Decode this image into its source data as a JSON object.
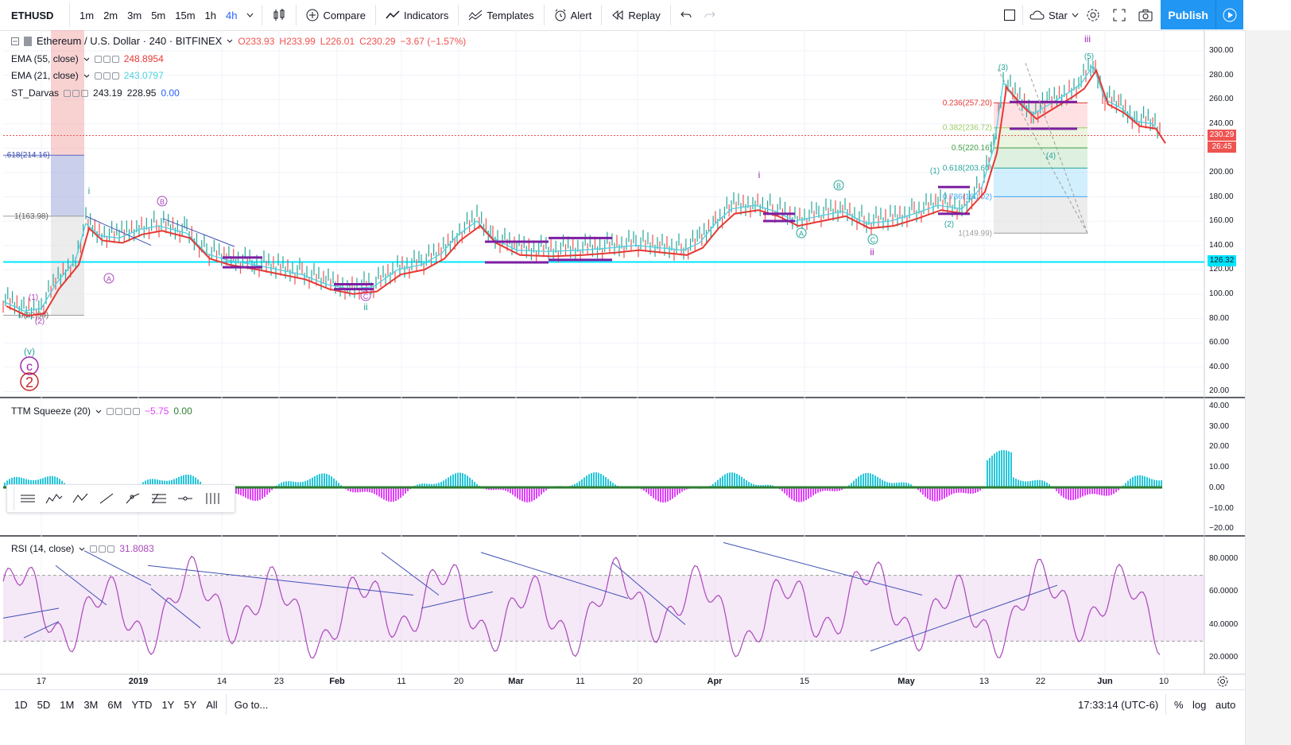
{
  "symbol": "ETHUSD",
  "timeframes": [
    {
      "label": "1m",
      "active": false
    },
    {
      "label": "2m",
      "active": false
    },
    {
      "label": "3m",
      "active": false
    },
    {
      "label": "5m",
      "active": false
    },
    {
      "label": "15m",
      "active": false
    },
    {
      "label": "1h",
      "active": false
    },
    {
      "label": "4h",
      "active": true
    }
  ],
  "toolbar": {
    "compare": "Compare",
    "indicators": "Indicators",
    "templates": "Templates",
    "alert": "Alert",
    "replay": "Replay",
    "star": "Star",
    "publish": "Publish"
  },
  "legend": {
    "title": "Ethereum / U.S. Dollar · 240 · BITFINEX",
    "open": "O233.93",
    "high": "H233.99",
    "low": "L226.01",
    "close": "C230.29",
    "change": "−3.67 (−1.57%)",
    "ema55_label": "EMA (55, close)",
    "ema55_value": "248.8954",
    "ema21_label": "EMA (21, close)",
    "ema21_value": "243.0797",
    "darvas_label": "ST_Darvas",
    "darvas_v1": "243.19",
    "darvas_v2": "228.95",
    "darvas_v3": "0.00",
    "ttm_label": "TTM Squeeze (20)",
    "ttm_v1": "−5.75",
    "ttm_v2": "0.00",
    "rsi_label": "RSI (14, close)",
    "rsi_value": "31.8083"
  },
  "price_axis": [
    "300.00",
    "280.00",
    "260.00",
    "240.00",
    "220.00",
    "200.00",
    "180.00",
    "160.00",
    "140.00",
    "120.00",
    "100.00",
    "80.00",
    "60.00",
    "40.00",
    "20.00"
  ],
  "price_tags": {
    "last": "230.29",
    "countdown": "26:45",
    "hline": "126.32"
  },
  "ttm_axis": [
    "40.00",
    "30.00",
    "20.00",
    "10.00",
    "0.00",
    "−10.00",
    "−20.00"
  ],
  "rsi_axis": [
    "80.0000",
    "60.0000",
    "40.0000",
    "20.0000"
  ],
  "time_axis": [
    "17",
    "2019",
    "14",
    "23",
    "Feb",
    "11",
    "20",
    "Mar",
    "11",
    "20",
    "Apr",
    "15",
    "May",
    "13",
    "22",
    "Jun",
    "10"
  ],
  "fib_left": [
    ".618(214.16)",
    "1(163.98)",
    "0(82.50)"
  ],
  "fib_right": [
    "0.236(257.20)",
    "0.382(236.72)",
    "0.5(220.16)",
    "0.618(203.60)",
    "0.786(180.02)",
    "1(149.99)"
  ],
  "waves": {
    "iii": "iii",
    "i": "i",
    "ii": "ii",
    "A": "A",
    "B": "B",
    "C": "C",
    "two": "2",
    "c": "c",
    "v": "(v)",
    "n1": "(1)",
    "n2": "(2)",
    "n3": "(3)",
    "n4": "(4)",
    "n5": "(5)"
  },
  "ranges": [
    "1D",
    "5D",
    "1M",
    "3M",
    "6M",
    "YTD",
    "1Y",
    "5Y",
    "All"
  ],
  "goto": "Go to...",
  "clock": "17:33:14 (UTC-6)",
  "bottom_right": {
    "pct": "%",
    "log": "log",
    "auto": "auto"
  },
  "colors": {
    "ema55": "#e53935",
    "ema21": "#4dd0e1",
    "hline": "#00e5ff",
    "rsi": "#ab47bc",
    "ttm_pos": "#26c6da",
    "ttm_neg": "#e040fb",
    "darvas": "#7b1fa2",
    "accent": "#2962ff",
    "publish": "#2196f3"
  }
}
